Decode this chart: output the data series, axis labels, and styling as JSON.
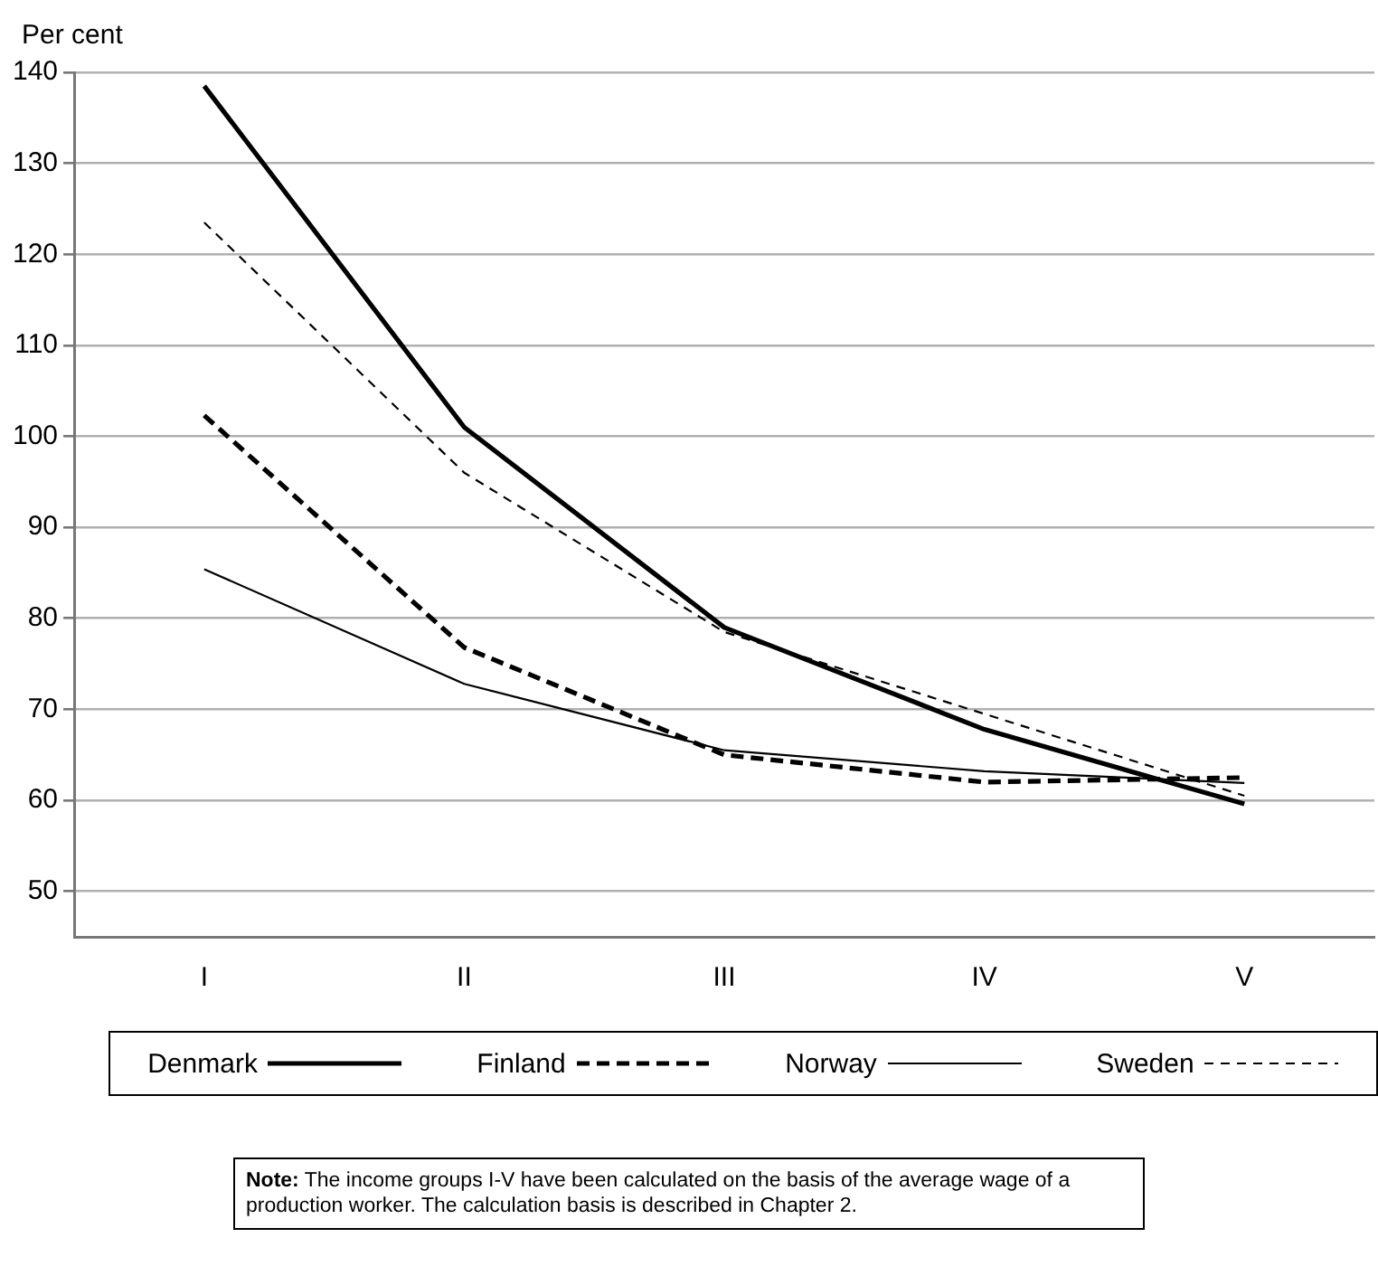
{
  "chart_data": {
    "type": "line",
    "ylabel": "Per cent",
    "categories": [
      "I",
      "II",
      "III",
      "IV",
      "V"
    ],
    "series": [
      {
        "name": "Denmark",
        "color": "#000000",
        "line_style": "solid",
        "values": [
          138.5,
          101,
          79,
          67.8,
          59.6
        ]
      },
      {
        "name": "Finland",
        "color": "#000000",
        "line_style": "dashed",
        "values": [
          102.3,
          76.8,
          65,
          62,
          62.5
        ]
      },
      {
        "name": "Norway",
        "color": "#000000",
        "line_style": "solid",
        "values": [
          85.4,
          72.8,
          65.5,
          63.2,
          61.9
        ]
      },
      {
        "name": "Sweden",
        "color": "#000000",
        "line_style": "dashed",
        "values": [
          123.5,
          96,
          78.5,
          69.5,
          60.5
        ]
      }
    ],
    "ylim": [
      45,
      140
    ],
    "yticks": [
      50,
      60,
      70,
      80,
      90,
      100,
      110,
      120,
      130,
      140
    ],
    "grid": "y",
    "legend": "bottom",
    "marker": "none",
    "annotations": [
      "Note: The income groups I-V have been calculated on the basis of the average wage of a production worker. The calculation basis is described in Chapter 2."
    ]
  }
}
